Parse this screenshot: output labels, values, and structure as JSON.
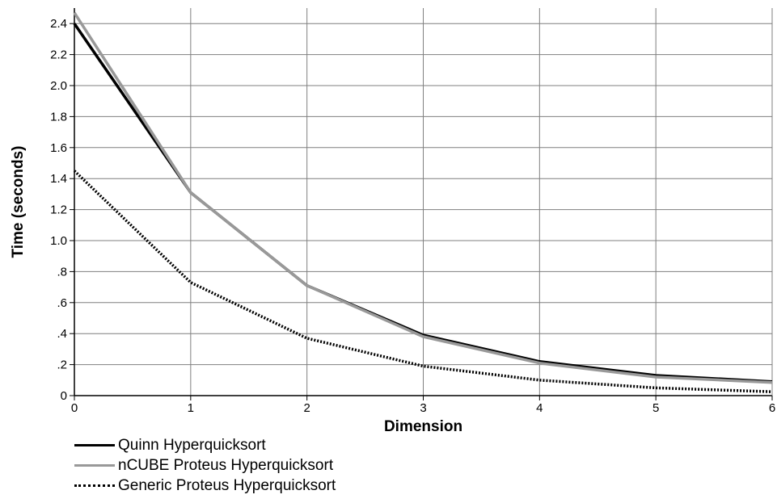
{
  "chart_data": {
    "type": "line",
    "title": "",
    "xlabel": "Dimension",
    "ylabel": "Time (seconds)",
    "x": [
      0,
      1,
      2,
      3,
      4,
      5,
      6
    ],
    "xlim": [
      0,
      6
    ],
    "ylim": [
      0,
      2.5
    ],
    "x_ticks": [
      "0",
      "1",
      "2",
      "3",
      "4",
      "5",
      "6"
    ],
    "y_ticks": [
      {
        "value": 0,
        "label": "0"
      },
      {
        "value": 0.2,
        "label": ".2"
      },
      {
        "value": 0.4,
        "label": ".4"
      },
      {
        "value": 0.6,
        "label": ".6"
      },
      {
        "value": 0.8,
        "label": ".8"
      },
      {
        "value": 1.0,
        "label": "1.0"
      },
      {
        "value": 1.2,
        "label": "1.2"
      },
      {
        "value": 1.4,
        "label": "1.4"
      },
      {
        "value": 1.6,
        "label": "1.6"
      },
      {
        "value": 1.8,
        "label": "1.8"
      },
      {
        "value": 2.0,
        "label": "2.0"
      },
      {
        "value": 2.2,
        "label": "2.2"
      },
      {
        "value": 2.4,
        "label": "2.4"
      }
    ],
    "grid": true,
    "legend_position": "bottom-left",
    "series": [
      {
        "name": "Quinn Hyperquicksort",
        "values": [
          2.4,
          1.31,
          0.71,
          0.39,
          0.22,
          0.13,
          0.09
        ],
        "color": "#000000",
        "style": "solid"
      },
      {
        "name": "nCUBE Proteus Hyperquicksort",
        "values": [
          2.47,
          1.31,
          0.71,
          0.38,
          0.21,
          0.12,
          0.085
        ],
        "color": "#999999",
        "style": "solid"
      },
      {
        "name": "Generic Proteus Hyperquicksort",
        "values": [
          1.45,
          0.73,
          0.37,
          0.19,
          0.1,
          0.05,
          0.025
        ],
        "color": "#000000",
        "style": "dotted"
      }
    ]
  }
}
